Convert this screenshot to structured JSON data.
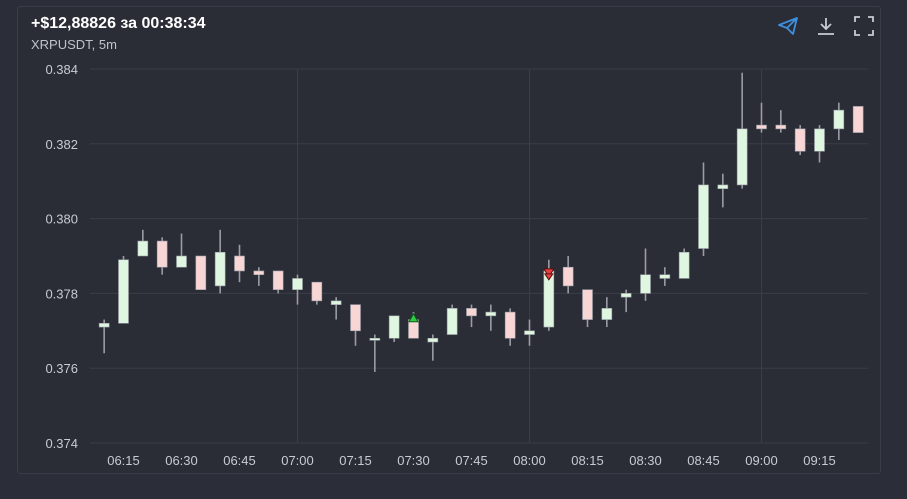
{
  "header": {
    "title": "+$12,88826 за 00:38:34",
    "subtitle": "XRPUSDT, 5m"
  },
  "toolbar": {
    "icons": [
      "send-icon",
      "download-icon",
      "fullscreen-icon"
    ],
    "accent": "#3d8fe0"
  },
  "colors": {
    "up_fill": "#dff7e0",
    "down_fill": "#f8d6d6",
    "wick": "#9a9da6",
    "grid": "#3a3d48",
    "axis_text": "#c8cbd2",
    "buy_marker": "#2ecc40",
    "sell_marker": "#e84040"
  },
  "chart_data": {
    "type": "candlestick",
    "title": "",
    "xlabel": "",
    "ylabel": "",
    "ylim": [
      0.374,
      0.384
    ],
    "yticks": [
      "0.384",
      "0.382",
      "0.380",
      "0.378",
      "0.376",
      "0.374"
    ],
    "ytick_values": [
      0.384,
      0.382,
      0.38,
      0.378,
      0.376,
      0.374
    ],
    "xticks": [
      "06:15",
      "06:30",
      "06:45",
      "07:00",
      "07:15",
      "07:30",
      "07:45",
      "08:00",
      "08:15",
      "08:30",
      "08:45",
      "09:00",
      "09:15"
    ],
    "xtick_minutes": [
      375,
      390,
      405,
      420,
      435,
      450,
      465,
      480,
      495,
      510,
      525,
      540,
      555
    ],
    "interval_minutes": 5,
    "grid": true,
    "candles": [
      {
        "t": 370,
        "o": 0.3771,
        "h": 0.3773,
        "l": 0.3764,
        "c": 0.3772
      },
      {
        "t": 375,
        "o": 0.3772,
        "h": 0.379,
        "l": 0.3772,
        "c": 0.3789
      },
      {
        "t": 380,
        "o": 0.379,
        "h": 0.3797,
        "l": 0.379,
        "c": 0.3794
      },
      {
        "t": 385,
        "o": 0.3794,
        "h": 0.3795,
        "l": 0.3785,
        "c": 0.3787
      },
      {
        "t": 390,
        "o": 0.3787,
        "h": 0.3796,
        "l": 0.3787,
        "c": 0.379
      },
      {
        "t": 395,
        "o": 0.379,
        "h": 0.379,
        "l": 0.3781,
        "c": 0.3781
      },
      {
        "t": 400,
        "o": 0.3782,
        "h": 0.3797,
        "l": 0.378,
        "c": 0.3791
      },
      {
        "t": 405,
        "o": 0.379,
        "h": 0.3793,
        "l": 0.3783,
        "c": 0.3786
      },
      {
        "t": 410,
        "o": 0.3786,
        "h": 0.3787,
        "l": 0.3782,
        "c": 0.3785
      },
      {
        "t": 415,
        "o": 0.3786,
        "h": 0.3786,
        "l": 0.378,
        "c": 0.3781
      },
      {
        "t": 420,
        "o": 0.3781,
        "h": 0.3785,
        "l": 0.3777,
        "c": 0.3784
      },
      {
        "t": 425,
        "o": 0.3783,
        "h": 0.3783,
        "l": 0.3777,
        "c": 0.3778
      },
      {
        "t": 430,
        "o": 0.3777,
        "h": 0.3779,
        "l": 0.3773,
        "c": 0.3778
      },
      {
        "t": 435,
        "o": 0.3777,
        "h": 0.3777,
        "l": 0.3766,
        "c": 0.377
      },
      {
        "t": 440,
        "o": 0.3768,
        "h": 0.3769,
        "l": 0.3759,
        "c": 0.3768
      },
      {
        "t": 445,
        "o": 0.3768,
        "h": 0.3774,
        "l": 0.3767,
        "c": 0.3774
      },
      {
        "t": 450,
        "o": 0.3773,
        "h": 0.3775,
        "l": 0.3768,
        "c": 0.3768
      },
      {
        "t": 455,
        "o": 0.3767,
        "h": 0.3769,
        "l": 0.3762,
        "c": 0.3768
      },
      {
        "t": 460,
        "o": 0.3769,
        "h": 0.3777,
        "l": 0.3769,
        "c": 0.3776
      },
      {
        "t": 465,
        "o": 0.3776,
        "h": 0.3777,
        "l": 0.3771,
        "c": 0.3774
      },
      {
        "t": 470,
        "o": 0.3774,
        "h": 0.3777,
        "l": 0.377,
        "c": 0.3775
      },
      {
        "t": 475,
        "o": 0.3775,
        "h": 0.3776,
        "l": 0.3766,
        "c": 0.3768
      },
      {
        "t": 480,
        "o": 0.3769,
        "h": 0.3773,
        "l": 0.3766,
        "c": 0.377
      },
      {
        "t": 485,
        "o": 0.3771,
        "h": 0.3789,
        "l": 0.377,
        "c": 0.3786
      },
      {
        "t": 490,
        "o": 0.3787,
        "h": 0.379,
        "l": 0.378,
        "c": 0.3782
      },
      {
        "t": 495,
        "o": 0.3781,
        "h": 0.3781,
        "l": 0.3771,
        "c": 0.3773
      },
      {
        "t": 500,
        "o": 0.3773,
        "h": 0.3779,
        "l": 0.3771,
        "c": 0.3776
      },
      {
        "t": 505,
        "o": 0.3779,
        "h": 0.3781,
        "l": 0.3775,
        "c": 0.378
      },
      {
        "t": 510,
        "o": 0.378,
        "h": 0.3792,
        "l": 0.3778,
        "c": 0.3785
      },
      {
        "t": 515,
        "o": 0.3784,
        "h": 0.3787,
        "l": 0.3782,
        "c": 0.3785
      },
      {
        "t": 520,
        "o": 0.3784,
        "h": 0.3792,
        "l": 0.3784,
        "c": 0.3791
      },
      {
        "t": 525,
        "o": 0.3792,
        "h": 0.3815,
        "l": 0.379,
        "c": 0.3809
      },
      {
        "t": 530,
        "o": 0.3808,
        "h": 0.3812,
        "l": 0.3803,
        "c": 0.3809
      },
      {
        "t": 535,
        "o": 0.3809,
        "h": 0.3839,
        "l": 0.3808,
        "c": 0.3824
      },
      {
        "t": 540,
        "o": 0.3825,
        "h": 0.3831,
        "l": 0.3823,
        "c": 0.3824
      },
      {
        "t": 545,
        "o": 0.3825,
        "h": 0.3829,
        "l": 0.3823,
        "c": 0.3824
      },
      {
        "t": 550,
        "o": 0.3824,
        "h": 0.3825,
        "l": 0.3817,
        "c": 0.3818
      },
      {
        "t": 555,
        "o": 0.3818,
        "h": 0.3825,
        "l": 0.3815,
        "c": 0.3824
      },
      {
        "t": 560,
        "o": 0.3824,
        "h": 0.3831,
        "l": 0.3821,
        "c": 0.3829
      },
      {
        "t": 565,
        "o": 0.383,
        "h": 0.383,
        "l": 0.3823,
        "c": 0.3823
      }
    ],
    "markers": [
      {
        "type": "buy",
        "t": 450,
        "price": 0.37735
      },
      {
        "type": "sell",
        "t": 485,
        "price": 0.37855
      }
    ]
  }
}
